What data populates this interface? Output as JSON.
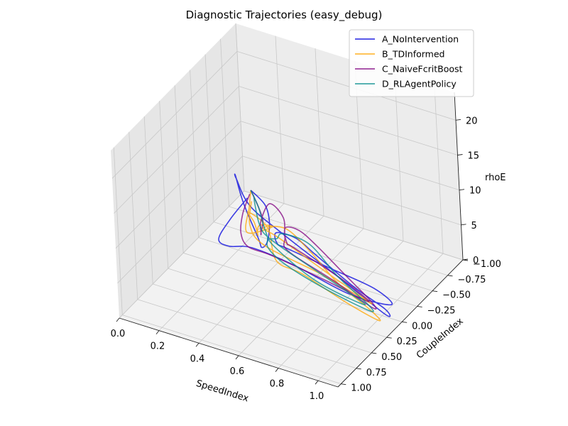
{
  "chart_data": {
    "type": "line3d",
    "title": "Diagnostic Trajectories (easy_debug)",
    "xlabel": "SpeedIndex",
    "ylabel": "CoupleIndex",
    "zlabel": "rhoE",
    "xlim": [
      0.0,
      1.1
    ],
    "ylim": [
      -1.0,
      1.05
    ],
    "zlim": [
      0,
      24
    ],
    "xticks": [
      "0.0",
      "0.2",
      "0.4",
      "0.6",
      "0.8",
      "1.0"
    ],
    "yticks": [
      "−1.00",
      "−0.75",
      "−0.50",
      "−0.25",
      "0.00",
      "0.25",
      "0.50",
      "0.75",
      "1.00"
    ],
    "zticks": [
      "0",
      "5",
      "10",
      "15",
      "20"
    ],
    "grid": true,
    "legend_position": "upper-right",
    "series": [
      {
        "name": "A_NoIntervention",
        "color": "#0000dd",
        "points": [
          [
            0.05,
            -0.95,
            1.0
          ],
          [
            0.2,
            -0.7,
            2.5
          ],
          [
            0.35,
            -0.3,
            5.0
          ],
          [
            0.5,
            0.2,
            8.0
          ],
          [
            0.6,
            0.6,
            11.5
          ],
          [
            0.65,
            0.8,
            15.0
          ],
          [
            0.6,
            0.85,
            20.0
          ],
          [
            0.55,
            0.8,
            23.0
          ],
          [
            0.52,
            0.7,
            21.5
          ],
          [
            0.55,
            0.6,
            17.0
          ],
          [
            0.65,
            0.4,
            12.0
          ],
          [
            0.85,
            0.2,
            6.0
          ],
          [
            1.05,
            0.1,
            1.5
          ],
          [
            1.0,
            -0.05,
            0.5
          ],
          [
            0.8,
            -0.2,
            0.5
          ],
          [
            0.55,
            -0.4,
            1.0
          ],
          [
            0.4,
            -0.55,
            0.8
          ],
          [
            0.35,
            -0.4,
            2.5
          ],
          [
            0.45,
            -0.1,
            4.5
          ],
          [
            0.55,
            0.05,
            6.0
          ],
          [
            0.75,
            0.0,
            4.5
          ],
          [
            0.95,
            -0.05,
            3.0
          ],
          [
            1.05,
            0.0,
            2.0
          ],
          [
            0.9,
            0.2,
            4.0
          ],
          [
            0.7,
            0.4,
            8.0
          ],
          [
            0.55,
            0.6,
            11.0
          ],
          [
            0.4,
            0.5,
            9.0
          ],
          [
            0.25,
            0.2,
            6.0
          ],
          [
            0.15,
            -0.3,
            3.5
          ],
          [
            0.08,
            -0.8,
            1.5
          ]
        ]
      },
      {
        "name": "B_TDInformed",
        "color": "#ffa500",
        "points": [
          [
            0.05,
            -0.95,
            1.0
          ],
          [
            0.12,
            -0.7,
            1.5
          ],
          [
            0.2,
            -0.4,
            1.2
          ],
          [
            0.3,
            -0.5,
            2.0
          ],
          [
            0.3,
            -0.3,
            4.0
          ],
          [
            0.4,
            0.05,
            7.0
          ],
          [
            0.55,
            0.5,
            12.0
          ],
          [
            0.6,
            0.7,
            16.0
          ],
          [
            0.62,
            0.85,
            19.0
          ],
          [
            0.7,
            0.8,
            17.0
          ],
          [
            0.72,
            0.75,
            12.0
          ],
          [
            0.8,
            0.6,
            9.5
          ],
          [
            0.95,
            0.4,
            5.0
          ],
          [
            1.05,
            0.2,
            1.5
          ],
          [
            0.95,
            0.05,
            1.0
          ],
          [
            0.75,
            -0.1,
            1.5
          ],
          [
            0.55,
            -0.3,
            2.5
          ],
          [
            0.4,
            -0.4,
            3.5
          ],
          [
            0.35,
            -0.2,
            5.0
          ],
          [
            0.5,
            0.1,
            8.0
          ],
          [
            0.65,
            0.4,
            11.0
          ],
          [
            0.85,
            0.3,
            7.0
          ],
          [
            1.0,
            0.15,
            3.0
          ],
          [
            0.75,
            0.15,
            5.0
          ],
          [
            0.45,
            0.1,
            6.0
          ],
          [
            0.25,
            -0.3,
            3.5
          ],
          [
            0.1,
            -0.8,
            1.2
          ]
        ]
      },
      {
        "name": "C_NaiveFcritBoost",
        "color": "#800080",
        "points": [
          [
            0.05,
            -0.95,
            1.0
          ],
          [
            0.2,
            -0.6,
            3.0
          ],
          [
            0.35,
            -0.2,
            6.0
          ],
          [
            0.5,
            0.3,
            10.0
          ],
          [
            0.6,
            0.6,
            13.5
          ],
          [
            0.65,
            0.75,
            17.0
          ],
          [
            0.7,
            0.75,
            20.0
          ],
          [
            0.75,
            0.7,
            18.0
          ],
          [
            0.72,
            0.6,
            14.0
          ],
          [
            0.7,
            0.5,
            11.0
          ],
          [
            0.85,
            0.3,
            6.5
          ],
          [
            1.0,
            0.15,
            2.5
          ],
          [
            0.95,
            0.0,
            1.5
          ],
          [
            0.75,
            -0.2,
            2.0
          ],
          [
            0.55,
            -0.4,
            2.5
          ],
          [
            0.4,
            -0.6,
            1.5
          ],
          [
            0.38,
            -0.45,
            3.0
          ],
          [
            0.5,
            -0.1,
            5.0
          ],
          [
            0.6,
            0.1,
            7.0
          ],
          [
            0.8,
            0.0,
            3.5
          ],
          [
            0.95,
            0.05,
            2.0
          ],
          [
            0.8,
            0.25,
            5.5
          ],
          [
            0.6,
            0.45,
            9.0
          ],
          [
            0.45,
            0.35,
            8.0
          ],
          [
            0.3,
            0.0,
            5.5
          ],
          [
            0.15,
            -0.5,
            2.5
          ],
          [
            0.06,
            -0.9,
            1.0
          ]
        ]
      },
      {
        "name": "D_RLAgentPolicy",
        "color": "#008b8b",
        "points": [
          [
            0.05,
            -0.95,
            1.0
          ],
          [
            0.2,
            -0.6,
            3.0
          ],
          [
            0.35,
            -0.2,
            5.5
          ],
          [
            0.5,
            0.2,
            8.5
          ],
          [
            0.6,
            0.5,
            10.5
          ],
          [
            0.7,
            0.55,
            9.5
          ],
          [
            0.85,
            0.4,
            6.0
          ],
          [
            1.0,
            0.2,
            2.5
          ],
          [
            0.95,
            0.05,
            1.5
          ],
          [
            0.75,
            -0.1,
            2.5
          ],
          [
            0.55,
            -0.3,
            3.5
          ],
          [
            0.45,
            -0.2,
            5.0
          ],
          [
            0.5,
            0.05,
            7.0
          ],
          [
            0.55,
            0.3,
            9.0
          ],
          [
            0.75,
            0.25,
            5.0
          ],
          [
            0.95,
            0.1,
            2.0
          ],
          [
            0.7,
            0.05,
            4.0
          ],
          [
            0.45,
            0.0,
            6.0
          ],
          [
            0.3,
            -0.3,
            4.0
          ],
          [
            0.15,
            -0.7,
            2.0
          ],
          [
            0.08,
            -0.9,
            1.0
          ]
        ]
      }
    ]
  }
}
